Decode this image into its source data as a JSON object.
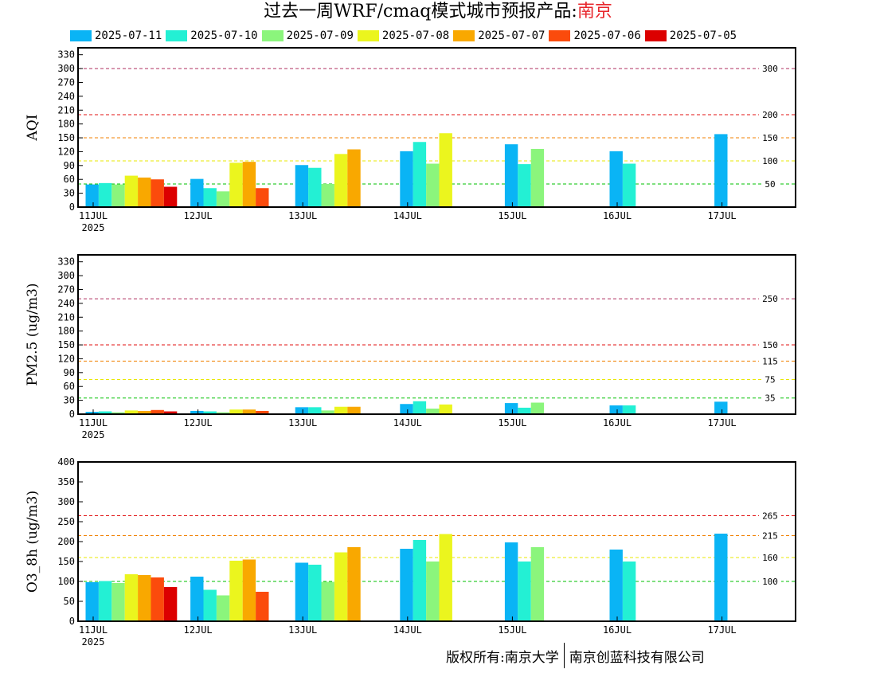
{
  "title": {
    "main": "过去一周WRF/cmaq模式城市预报产品:",
    "city": "南京"
  },
  "legend": [
    {
      "label": "2025-07-11",
      "color": "#0ab4f5"
    },
    {
      "label": "2025-07-10",
      "color": "#23f0d4"
    },
    {
      "label": "2025-07-09",
      "color": "#8bf57c"
    },
    {
      "label": "2025-07-08",
      "color": "#ebf51e"
    },
    {
      "label": "2025-07-07",
      "color": "#f9a800"
    },
    {
      "label": "2025-07-06",
      "color": "#fb4b0c"
    },
    {
      "label": "2025-07-05",
      "color": "#dc0000"
    }
  ],
  "footer": {
    "left": "版权所有:南京大学",
    "right": "南京创蓝科技有限公司"
  },
  "chart_data": [
    {
      "type": "bar",
      "ylabel": "AQI",
      "ylim": [
        0,
        345
      ],
      "yticks": [
        0,
        30,
        60,
        90,
        120,
        150,
        180,
        210,
        240,
        270,
        300,
        330
      ],
      "categories": [
        "11JUL",
        "12JUL",
        "13JUL",
        "14JUL",
        "15JUL",
        "16JUL",
        "17JUL"
      ],
      "year_label": "2025",
      "thresholds": [
        {
          "value": 300,
          "label": "300",
          "color": "#b03060"
        },
        {
          "value": 200,
          "label": "200",
          "color": "#e01010"
        },
        {
          "value": 150,
          "label": "150",
          "color": "#f08000"
        },
        {
          "value": 100,
          "label": "100",
          "color": "#e8e800"
        },
        {
          "value": 50,
          "label": "50",
          "color": "#00c000"
        }
      ],
      "series": [
        {
          "name": "2025-07-11",
          "values": [
            49,
            61,
            91,
            121,
            136,
            121,
            158
          ]
        },
        {
          "name": "2025-07-10",
          "values": [
            52,
            41,
            85,
            141,
            93,
            94,
            null
          ]
        },
        {
          "name": "2025-07-09",
          "values": [
            49,
            34,
            50,
            94,
            126,
            null,
            null
          ]
        },
        {
          "name": "2025-07-08",
          "values": [
            68,
            96,
            115,
            160,
            null,
            null,
            null
          ]
        },
        {
          "name": "2025-07-07",
          "values": [
            64,
            98,
            125,
            null,
            null,
            null,
            null
          ]
        },
        {
          "name": "2025-07-06",
          "values": [
            60,
            41,
            null,
            null,
            null,
            null,
            null
          ]
        },
        {
          "name": "2025-07-05",
          "values": [
            44,
            null,
            null,
            null,
            null,
            null,
            null
          ]
        }
      ]
    },
    {
      "type": "bar",
      "ylabel": "PM2.5 (ug/m3)",
      "ylim": [
        0,
        345
      ],
      "yticks": [
        0,
        30,
        60,
        90,
        120,
        150,
        180,
        210,
        240,
        270,
        300,
        330
      ],
      "categories": [
        "11JUL",
        "12JUL",
        "13JUL",
        "14JUL",
        "15JUL",
        "16JUL",
        "17JUL"
      ],
      "year_label": "2025",
      "thresholds": [
        {
          "value": 250,
          "label": "250",
          "color": "#b03060"
        },
        {
          "value": 150,
          "label": "150",
          "color": "#e01010"
        },
        {
          "value": 115,
          "label": "115",
          "color": "#f08000"
        },
        {
          "value": 75,
          "label": "75",
          "color": "#e8e800"
        },
        {
          "value": 35,
          "label": "35",
          "color": "#00c000"
        }
      ],
      "series": [
        {
          "name": "2025-07-11",
          "values": [
            5,
            7,
            15,
            22,
            24,
            19,
            27
          ]
        },
        {
          "name": "2025-07-10",
          "values": [
            6,
            6,
            15,
            28,
            14,
            19,
            null
          ]
        },
        {
          "name": "2025-07-09",
          "values": [
            4,
            4,
            8,
            12,
            25,
            null,
            null
          ]
        },
        {
          "name": "2025-07-08",
          "values": [
            8,
            10,
            16,
            21,
            null,
            null,
            null
          ]
        },
        {
          "name": "2025-07-07",
          "values": [
            7,
            10,
            16,
            null,
            null,
            null,
            null
          ]
        },
        {
          "name": "2025-07-06",
          "values": [
            9,
            7,
            null,
            null,
            null,
            null,
            null
          ]
        },
        {
          "name": "2025-07-05",
          "values": [
            6,
            null,
            null,
            null,
            null,
            null,
            null
          ]
        }
      ]
    },
    {
      "type": "bar",
      "ylabel": "O3_8h (ug/m3)",
      "ylim": [
        0,
        400
      ],
      "yticks": [
        0,
        50,
        100,
        150,
        200,
        250,
        300,
        350,
        400
      ],
      "categories": [
        "11JUL",
        "12JUL",
        "13JUL",
        "14JUL",
        "15JUL",
        "16JUL",
        "17JUL"
      ],
      "year_label": "2025",
      "thresholds": [
        {
          "value": 265,
          "label": "265",
          "color": "#e01010"
        },
        {
          "value": 215,
          "label": "215",
          "color": "#f08000"
        },
        {
          "value": 160,
          "label": "160",
          "color": "#e8e800"
        },
        {
          "value": 100,
          "label": "100",
          "color": "#00c000"
        }
      ],
      "series": [
        {
          "name": "2025-07-11",
          "values": [
            98,
            112,
            147,
            182,
            198,
            180,
            220
          ]
        },
        {
          "name": "2025-07-10",
          "values": [
            101,
            79,
            142,
            204,
            150,
            150,
            null
          ]
        },
        {
          "name": "2025-07-09",
          "values": [
            96,
            65,
            99,
            150,
            186,
            null,
            null
          ]
        },
        {
          "name": "2025-07-08",
          "values": [
            118,
            152,
            173,
            219,
            null,
            null,
            null
          ]
        },
        {
          "name": "2025-07-07",
          "values": [
            116,
            155,
            186,
            null,
            null,
            null,
            null
          ]
        },
        {
          "name": "2025-07-06",
          "values": [
            110,
            74,
            null,
            null,
            null,
            null,
            null
          ]
        },
        {
          "name": "2025-07-05",
          "values": [
            86,
            null,
            null,
            null,
            null,
            null,
            null
          ]
        }
      ]
    }
  ]
}
